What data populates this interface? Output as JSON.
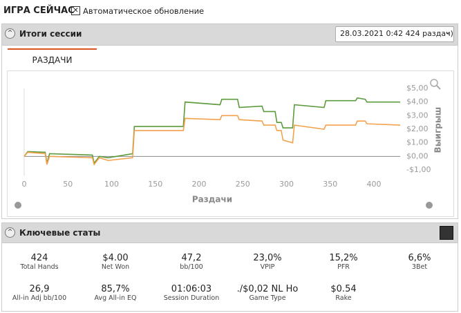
{
  "header": {
    "title": "ИГРА СЕЙЧАС",
    "auto_update": "Автоматическое обновление"
  },
  "session": {
    "title": "Итоги сессии",
    "selector": "28.03.2021 0:42 424 раздач)",
    "tab": "РАЗДАЧИ"
  },
  "chart_data": {
    "type": "line",
    "x_label": "Раздачи",
    "y_label": "Выигрыш",
    "x": [
      0,
      4,
      24,
      26,
      29,
      78,
      80,
      86,
      96,
      124,
      126,
      182,
      184,
      224,
      226,
      244,
      246,
      272,
      274,
      287,
      289,
      294,
      296,
      307,
      309,
      343,
      345,
      379,
      381,
      390,
      392,
      430
    ],
    "series": [
      {
        "color": "#5b9b3c",
        "values": [
          0,
          0.35,
          0.3,
          -0.5,
          0.2,
          0.1,
          -0.5,
          0.0,
          -0.1,
          0.2,
          2.2,
          2.2,
          4.0,
          3.8,
          4.2,
          4.2,
          3.6,
          3.7,
          3.3,
          3.3,
          2.5,
          2.5,
          2.1,
          2.1,
          3.8,
          3.6,
          4.1,
          4.1,
          4.3,
          4.2,
          4.0,
          4.0
        ]
      },
      {
        "color": "#f5a04a",
        "values": [
          0,
          0.3,
          0.2,
          -0.6,
          0.0,
          -0.1,
          -0.6,
          -0.1,
          -0.3,
          -0.1,
          1.9,
          1.9,
          2.8,
          2.7,
          3.0,
          3.0,
          2.7,
          2.6,
          2.3,
          2.3,
          1.9,
          1.9,
          1.2,
          1.0,
          2.3,
          2.0,
          2.3,
          2.3,
          2.6,
          2.6,
          2.4,
          2.3
        ]
      }
    ],
    "xlim": [
      0,
      430
    ],
    "xticks": [
      0,
      50,
      100,
      150,
      200,
      250,
      300,
      350,
      400
    ],
    "ylim": [
      -1,
      5
    ],
    "yticks": [
      {
        "value": -1,
        "label": "-$1,00"
      },
      {
        "value": 0,
        "label": "$0,00"
      },
      {
        "value": 1,
        "label": "$1,00"
      },
      {
        "value": 2,
        "label": "$2,00"
      },
      {
        "value": 3,
        "label": "$3,00"
      },
      {
        "value": 4,
        "label": "$4,00"
      },
      {
        "value": 5,
        "label": "$5,00"
      }
    ]
  },
  "key_stats": {
    "title": "Ключевые статы",
    "items": [
      {
        "value": "424",
        "label": "Total Hands"
      },
      {
        "value": "$4.00",
        "label": "Net Won"
      },
      {
        "value": "47,2",
        "label": "bb/100"
      },
      {
        "value": "23,0%",
        "label": "VPIP"
      },
      {
        "value": "15,2%",
        "label": "PFR"
      },
      {
        "value": "6,6%",
        "label": "3Bet"
      },
      {
        "value": "26,9",
        "label": "All-in Adj bb/100"
      },
      {
        "value": "85,7%",
        "label": "Avg All-in EQ"
      },
      {
        "value": "01:06:03",
        "label": "Session Duration"
      },
      {
        "value": "./$0,02 NL Ho",
        "label": "Game Type"
      },
      {
        "value": "$0.54",
        "label": "Rake"
      }
    ]
  }
}
